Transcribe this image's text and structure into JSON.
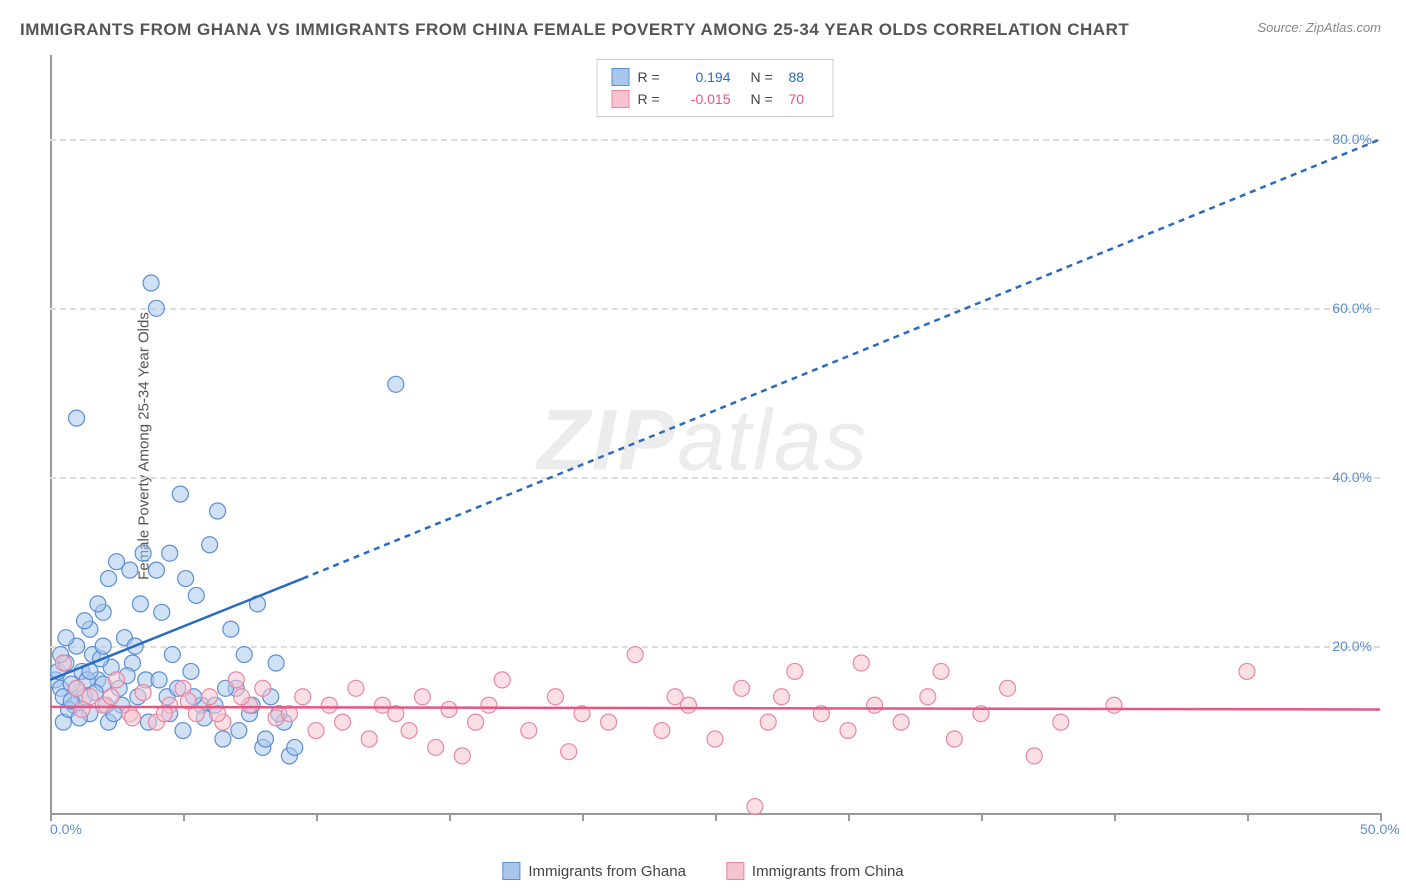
{
  "title": "IMMIGRANTS FROM GHANA VS IMMIGRANTS FROM CHINA FEMALE POVERTY AMONG 25-34 YEAR OLDS CORRELATION CHART",
  "source": "Source: ZipAtlas.com",
  "watermark_a": "ZIP",
  "watermark_b": "atlas",
  "y_axis_title": "Female Poverty Among 25-34 Year Olds",
  "chart": {
    "type": "scatter",
    "background_color": "#ffffff",
    "grid_color": "#dddddd",
    "axis_color": "#999999",
    "xlim": [
      0,
      50
    ],
    "ylim": [
      0,
      90
    ],
    "x_ticks": [
      0,
      5,
      10,
      15,
      20,
      25,
      30,
      35,
      40,
      45,
      50
    ],
    "x_tick_labels": {
      "0": "0.0%",
      "50": "50.0%"
    },
    "y_ticks": [
      20,
      40,
      60,
      80
    ],
    "y_tick_labels": {
      "20": "20.0%",
      "40": "40.0%",
      "60": "60.0%",
      "80": "80.0%"
    },
    "marker_radius": 8,
    "marker_opacity": 0.55,
    "trend_line_width": 2.5,
    "trend_dash": "6 5",
    "series": [
      {
        "name": "Immigrants from Ghana",
        "fill_color": "#a9c7ec",
        "stroke_color": "#5b8fd4",
        "trend_color": "#2a6bc0",
        "r_value": "0.194",
        "r_color": "#2a6bc0",
        "n_value": "88",
        "trend": {
          "x1": 0,
          "y1": 16,
          "x2_solid": 9.5,
          "y2_solid": 28,
          "x2": 50,
          "y2": 80
        },
        "points": [
          [
            0.2,
            16
          ],
          [
            0.3,
            17
          ],
          [
            0.4,
            15
          ],
          [
            0.5,
            14
          ],
          [
            0.6,
            18
          ],
          [
            0.8,
            15.5
          ],
          [
            0.9,
            13
          ],
          [
            1.0,
            20
          ],
          [
            1.2,
            17
          ],
          [
            1.3,
            14
          ],
          [
            1.5,
            22
          ],
          [
            1.6,
            19
          ],
          [
            1.8,
            16
          ],
          [
            2.0,
            24
          ],
          [
            2.1,
            13
          ],
          [
            2.3,
            17.5
          ],
          [
            2.5,
            30
          ],
          [
            2.6,
            15
          ],
          [
            2.8,
            21
          ],
          [
            3.0,
            29
          ],
          [
            3.1,
            18
          ],
          [
            3.4,
            25
          ],
          [
            3.6,
            16
          ],
          [
            3.8,
            63
          ],
          [
            4.0,
            60
          ],
          [
            4.2,
            24
          ],
          [
            4.4,
            14
          ],
          [
            4.6,
            19
          ],
          [
            4.9,
            38
          ],
          [
            5.1,
            28
          ],
          [
            5.3,
            17
          ],
          [
            5.5,
            26
          ],
          [
            5.7,
            13
          ],
          [
            6.0,
            32
          ],
          [
            6.3,
            36
          ],
          [
            6.5,
            9
          ],
          [
            6.8,
            22
          ],
          [
            7.0,
            15
          ],
          [
            7.3,
            19
          ],
          [
            7.5,
            12
          ],
          [
            7.8,
            25
          ],
          [
            8.0,
            8
          ],
          [
            8.3,
            14
          ],
          [
            8.5,
            18
          ],
          [
            8.8,
            11
          ],
          [
            9.0,
            7
          ],
          [
            1.0,
            47
          ],
          [
            1.5,
            12
          ],
          [
            2.0,
            15.5
          ],
          [
            2.2,
            11
          ],
          [
            2.7,
            13
          ],
          [
            3.2,
            20
          ],
          [
            0.5,
            11
          ],
          [
            0.7,
            12.5
          ],
          [
            1.1,
            11.5
          ],
          [
            1.4,
            16
          ],
          [
            1.7,
            14.5
          ],
          [
            1.9,
            18.5
          ],
          [
            2.4,
            12
          ],
          [
            2.9,
            16.5
          ],
          [
            3.3,
            14
          ],
          [
            3.7,
            11
          ],
          [
            4.1,
            16
          ],
          [
            4.5,
            12
          ],
          [
            4.8,
            15
          ],
          [
            5.0,
            10
          ],
          [
            5.4,
            14
          ],
          [
            5.8,
            11.5
          ],
          [
            6.2,
            13
          ],
          [
            6.6,
            15
          ],
          [
            7.1,
            10
          ],
          [
            7.6,
            13
          ],
          [
            8.1,
            9
          ],
          [
            8.6,
            12
          ],
          [
            9.2,
            8
          ],
          [
            0.4,
            19
          ],
          [
            0.6,
            21
          ],
          [
            1.3,
            23
          ],
          [
            1.8,
            25
          ],
          [
            2.2,
            28
          ],
          [
            0.8,
            13.5
          ],
          [
            1.0,
            15
          ],
          [
            1.5,
            17
          ],
          [
            2.0,
            20
          ],
          [
            3.5,
            31
          ],
          [
            4.0,
            29
          ],
          [
            4.5,
            31
          ],
          [
            13,
            51
          ]
        ]
      },
      {
        "name": "Immigrants from China",
        "fill_color": "#f5c4d0",
        "stroke_color": "#e887a3",
        "trend_color": "#e65584",
        "r_value": "-0.015",
        "r_color": "#e65584",
        "n_value": "70",
        "trend": {
          "x1": 0,
          "y1": 12.8,
          "x2_solid": 50,
          "y2_solid": 12.5,
          "x2": 50,
          "y2": 12.5
        },
        "points": [
          [
            0.5,
            18
          ],
          [
            1.0,
            15
          ],
          [
            1.5,
            14
          ],
          [
            2.0,
            13
          ],
          [
            2.5,
            16
          ],
          [
            3.0,
            12
          ],
          [
            3.5,
            14.5
          ],
          [
            4.0,
            11
          ],
          [
            4.5,
            13
          ],
          [
            5.0,
            15
          ],
          [
            5.5,
            12
          ],
          [
            6.0,
            14
          ],
          [
            6.5,
            11
          ],
          [
            7.0,
            16
          ],
          [
            7.5,
            13
          ],
          [
            8.0,
            15
          ],
          [
            8.5,
            11.5
          ],
          [
            9.0,
            12
          ],
          [
            9.5,
            14
          ],
          [
            10.0,
            10
          ],
          [
            10.5,
            13
          ],
          [
            11.0,
            11
          ],
          [
            11.5,
            15
          ],
          [
            12.0,
            9
          ],
          [
            12.5,
            13
          ],
          [
            13.0,
            12
          ],
          [
            13.5,
            10
          ],
          [
            14.0,
            14
          ],
          [
            14.5,
            8
          ],
          [
            15.0,
            12.5
          ],
          [
            15.5,
            7
          ],
          [
            16.0,
            11
          ],
          [
            16.5,
            13
          ],
          [
            17.0,
            16
          ],
          [
            18.0,
            10
          ],
          [
            19.0,
            14
          ],
          [
            19.5,
            7.5
          ],
          [
            20.0,
            12
          ],
          [
            21.0,
            11
          ],
          [
            22.0,
            19
          ],
          [
            23.0,
            10
          ],
          [
            23.5,
            14
          ],
          [
            24.0,
            13
          ],
          [
            25.0,
            9
          ],
          [
            26.0,
            15
          ],
          [
            27.0,
            11
          ],
          [
            27.5,
            14
          ],
          [
            28.0,
            17
          ],
          [
            29.0,
            12
          ],
          [
            30.0,
            10
          ],
          [
            30.5,
            18
          ],
          [
            31.0,
            13
          ],
          [
            32.0,
            11
          ],
          [
            33.0,
            14
          ],
          [
            33.5,
            17
          ],
          [
            34.0,
            9
          ],
          [
            35.0,
            12
          ],
          [
            36.0,
            15
          ],
          [
            37.0,
            7
          ],
          [
            38.0,
            11
          ],
          [
            40.0,
            13
          ],
          [
            45.0,
            17
          ],
          [
            26.5,
            1
          ],
          [
            1.2,
            12.5
          ],
          [
            2.3,
            14
          ],
          [
            3.1,
            11.5
          ],
          [
            4.3,
            12
          ],
          [
            5.2,
            13.5
          ],
          [
            6.3,
            12
          ],
          [
            7.2,
            14
          ]
        ]
      }
    ]
  },
  "bottom_legend": [
    {
      "label": "Immigrants from Ghana",
      "fill": "#a9c7ec",
      "stroke": "#5b8fd4"
    },
    {
      "label": "Immigrants from China",
      "fill": "#f5c4d0",
      "stroke": "#e887a3"
    }
  ]
}
